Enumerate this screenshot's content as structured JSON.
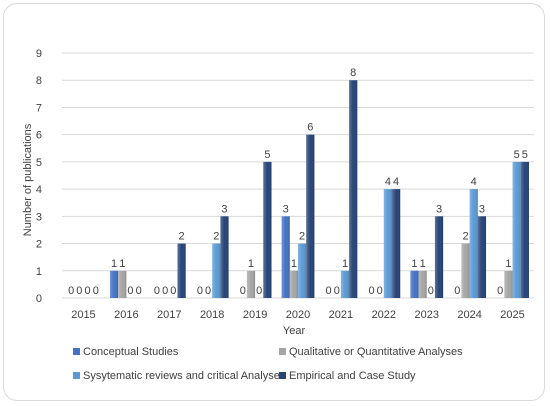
{
  "chart_data": {
    "type": "bar",
    "title": "",
    "xlabel": "Year",
    "ylabel": "Number of publications",
    "ylim": [
      0,
      9
    ],
    "yticks": [
      0,
      1,
      2,
      3,
      4,
      5,
      6,
      7,
      8,
      9
    ],
    "grid": "horizontal",
    "legend_position": "bottom",
    "categories": [
      "2015",
      "2016",
      "2017",
      "2018",
      "2019",
      "2020",
      "2021",
      "2022",
      "2023",
      "2024",
      "2025"
    ],
    "series": [
      {
        "name": "Conceptual Studies",
        "color": "#4472c4",
        "values": [
          0,
          1,
          0,
          0,
          0,
          3,
          0,
          0,
          1,
          0,
          0
        ]
      },
      {
        "name": "Qualitative or Quantitative Analyses",
        "color": "#a5a5a5",
        "values": [
          0,
          1,
          0,
          0,
          1,
          1,
          0,
          0,
          1,
          2,
          1
        ]
      },
      {
        "name": "Sysytematic reviews and critical Analyses",
        "color": "#5b9bd5",
        "values": [
          0,
          0,
          0,
          2,
          0,
          2,
          1,
          4,
          0,
          4,
          5
        ]
      },
      {
        "name": "Empirical and Case Study",
        "color": "#264478",
        "values": [
          0,
          0,
          2,
          3,
          5,
          6,
          8,
          4,
          3,
          3,
          5
        ]
      }
    ]
  }
}
